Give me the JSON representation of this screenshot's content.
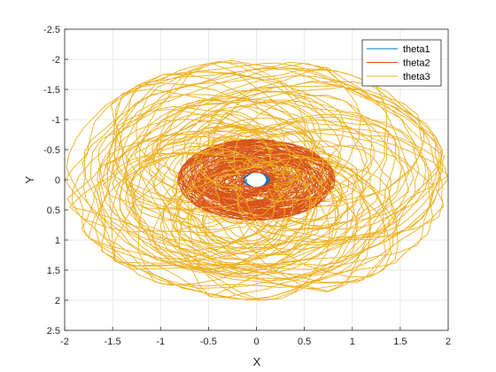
{
  "chart_data": {
    "type": "line",
    "xlabel": "X",
    "ylabel": "Y",
    "xlim": [
      -2,
      2
    ],
    "ylim": [
      -2.5,
      2.5
    ],
    "y_axis_reversed": true,
    "grid": true,
    "box": true,
    "legend_position": "top-right",
    "x_ticks": [
      "-2",
      "-1.5",
      "-1",
      "-0.5",
      "0",
      "0.5",
      "1",
      "1.5",
      "2"
    ],
    "y_ticks": [
      "-2.5",
      "-2",
      "-1.5",
      "-1",
      "-0.5",
      "0",
      "0.5",
      "1",
      "1.5",
      "2",
      "2.5"
    ],
    "series": [
      {
        "name": "theta1",
        "color": "#0072BD",
        "style": "small loops near origin",
        "r_min": 0.05,
        "r_max": 0.15
      },
      {
        "name": "theta2",
        "color": "#D95319",
        "style": "dense tangled orbits",
        "r_min": 0.1,
        "r_max": 0.85
      },
      {
        "name": "theta3",
        "color": "#EDB120",
        "style": "large tangled orbits",
        "r_min": 0.1,
        "r_max": 2.0
      }
    ]
  }
}
